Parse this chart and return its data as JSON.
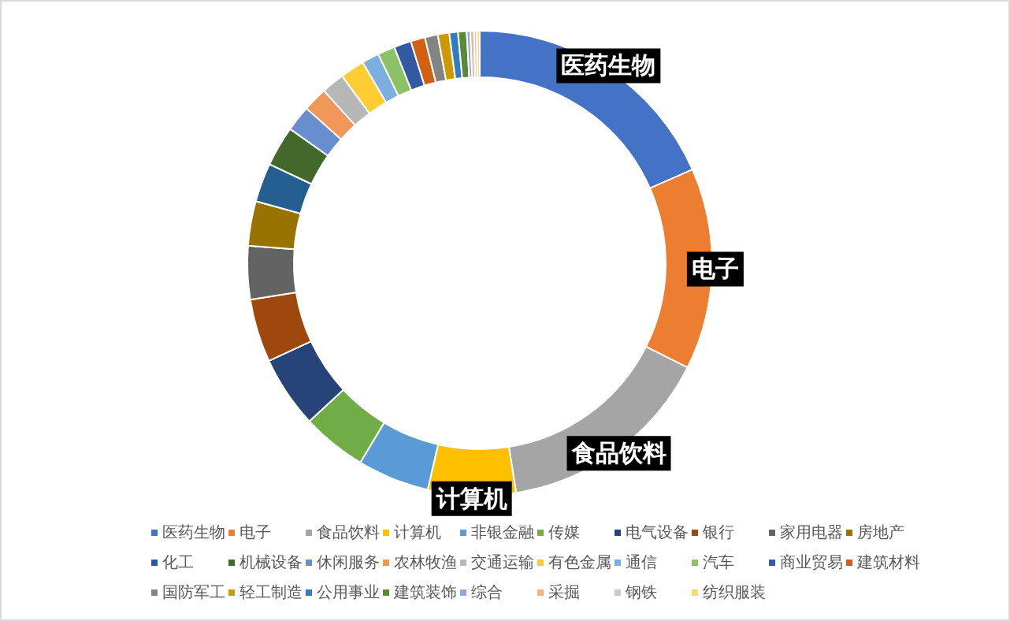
{
  "chart_data": {
    "type": "donut",
    "categories": [
      "医药生物",
      "电子",
      "食品饮料",
      "计算机",
      "非银金融",
      "传媒",
      "电气设备",
      "银行",
      "家用电器",
      "房地产",
      "化工",
      "机械设备",
      "休闲服务",
      "农林牧渔",
      "交通运输",
      "有色金属",
      "通信",
      "汽车",
      "商业贸易",
      "建筑材料",
      "国防军工",
      "轻工制造",
      "公用事业",
      "建筑装饰",
      "综合",
      "采掘",
      "钢铁",
      "纺织服装"
    ],
    "values": [
      18.4,
      14.0,
      15.1,
      6.1,
      5.0,
      4.5,
      5.0,
      4.4,
      3.7,
      3.1,
      2.7,
      2.8,
      1.8,
      1.7,
      1.6,
      1.7,
      1.2,
      1.2,
      1.2,
      1.0,
      0.9,
      0.8,
      0.6,
      0.6,
      0.25,
      0.25,
      0.2,
      0.2
    ],
    "colors": [
      "#4472c4",
      "#ed7d31",
      "#a5a5a5",
      "#ffc000",
      "#5b9bd5",
      "#70ad47",
      "#264478",
      "#9e480e",
      "#636363",
      "#997300",
      "#255e91",
      "#43682b",
      "#698ed0",
      "#f1975a",
      "#b7b7b7",
      "#ffcd33",
      "#7cafdd",
      "#8cc168",
      "#335aa1",
      "#d26012",
      "#848484",
      "#cc9a00",
      "#327dc2",
      "#5a8a39",
      "#8faadc",
      "#f4b183",
      "#c9c9c9",
      "#ffd966"
    ],
    "annotations": [
      {
        "text": "医药生物",
        "x": "医药生物"
      },
      {
        "text": "电子",
        "x": "电子"
      },
      {
        "text": "食品饮料",
        "x": "食品饮料"
      },
      {
        "text": "计算机",
        "x": "计算机"
      }
    ],
    "legend": "bottom"
  }
}
